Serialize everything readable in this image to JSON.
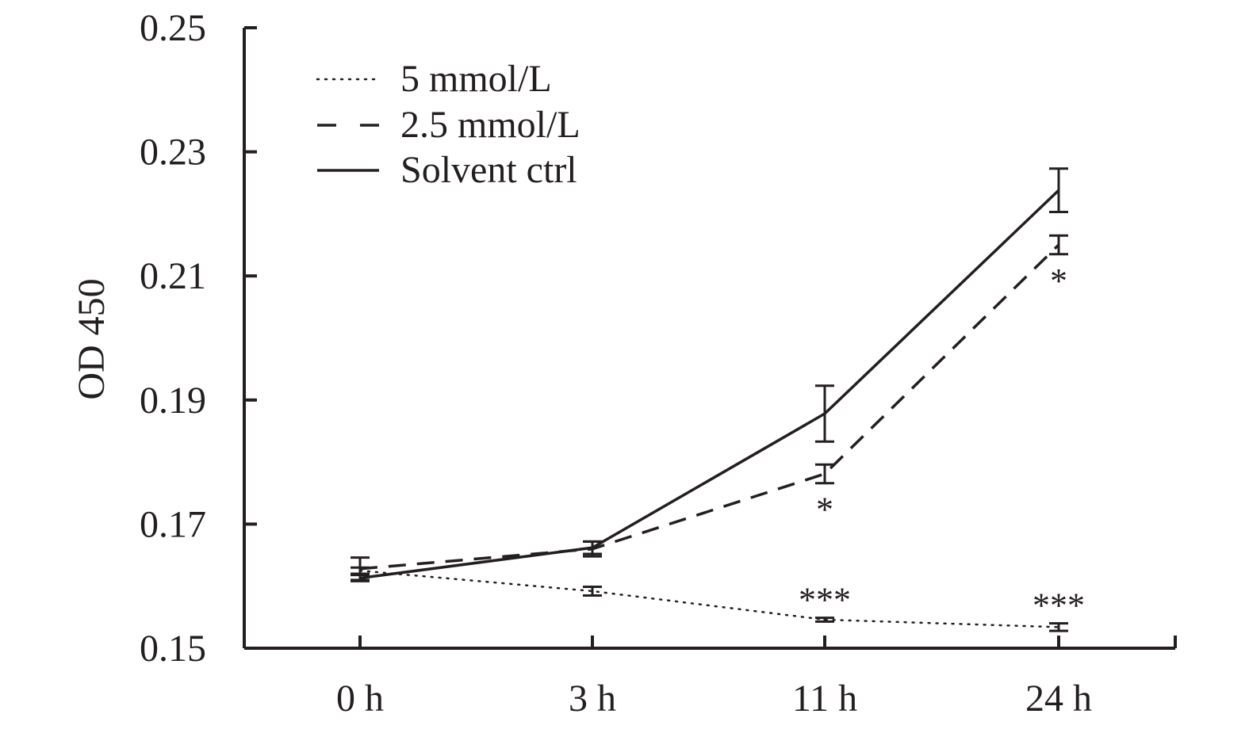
{
  "chart_data": {
    "type": "line",
    "title": "",
    "xlabel": "",
    "ylabel": "OD 450",
    "categories": [
      "0 h",
      "3 h",
      "11 h",
      "24 h"
    ],
    "ylim": [
      0.15,
      0.25
    ],
    "yticks": [
      "0.15",
      "0.17",
      "0.19",
      "0.21",
      "0.23",
      "0.25"
    ],
    "grid": false,
    "legend_position": "top-left",
    "series": [
      {
        "name": "5 mmol/L",
        "style": "dotted",
        "values": [
          0.1625,
          0.1592,
          0.1546,
          0.1534
        ],
        "errors": [
          0.0005,
          0.0007,
          0.0003,
          0.0006
        ],
        "significance": [
          "",
          "",
          "***",
          "***"
        ]
      },
      {
        "name": "2.5 mmol/L",
        "style": "dashed",
        "values": [
          0.1628,
          0.166,
          0.1781,
          0.215
        ],
        "errors": [
          0.0018,
          0.0012,
          0.0015,
          0.0015
        ],
        "significance": [
          "",
          "",
          "*",
          "*"
        ]
      },
      {
        "name": "Solvent ctrl",
        "style": "solid",
        "values": [
          0.1613,
          0.1662,
          0.1878,
          0.2238
        ],
        "errors": [
          0.0005,
          0.001,
          0.0045,
          0.0035
        ],
        "significance": [
          "",
          "",
          "",
          ""
        ]
      }
    ],
    "colors": {
      "line": "#231f20",
      "background": "#ffffff"
    }
  }
}
